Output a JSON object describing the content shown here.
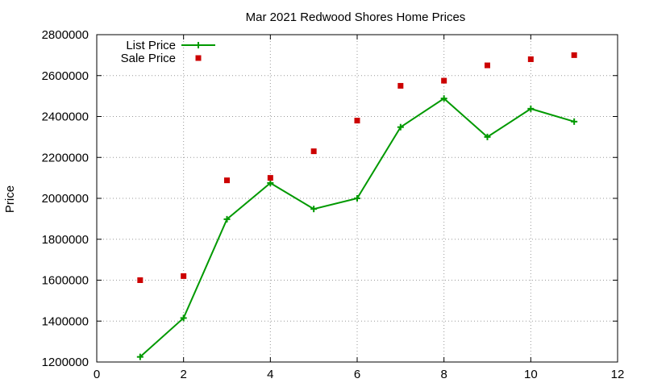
{
  "chart_data": {
    "type": "line",
    "title": "Mar 2021 Redwood Shores Home Prices",
    "xlabel": "",
    "ylabel": "Price",
    "xlim": [
      0,
      12
    ],
    "ylim": [
      1200000,
      2800000
    ],
    "x_ticks": [
      0,
      2,
      4,
      6,
      8,
      10,
      12
    ],
    "y_ticks": [
      1200000,
      1400000,
      1600000,
      1800000,
      2000000,
      2200000,
      2400000,
      2600000,
      2800000
    ],
    "grid": true,
    "legend_position": "top-left",
    "series": [
      {
        "name": "List Price",
        "style": "line+cross",
        "color": "#009900",
        "x": [
          1,
          2,
          3,
          4,
          5,
          6,
          7,
          8,
          9,
          10,
          11
        ],
        "values": [
          1225000,
          1415000,
          1898000,
          2075000,
          1948000,
          2000000,
          2348000,
          2488000,
          2300000,
          2438000,
          2375000
        ]
      },
      {
        "name": "Sale Price",
        "style": "square-points",
        "color": "#cc0000",
        "x": [
          1,
          2,
          3,
          4,
          5,
          6,
          7,
          8,
          9,
          10,
          11
        ],
        "values": [
          1600000,
          1620000,
          2088000,
          2100000,
          2230000,
          2380000,
          2550000,
          2575000,
          2650000,
          2680000,
          2700000
        ]
      }
    ]
  }
}
